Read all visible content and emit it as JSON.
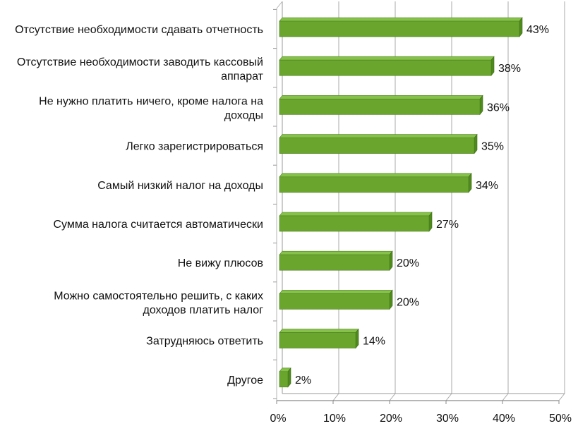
{
  "chart_data": {
    "type": "bar",
    "orientation": "horizontal",
    "style": "3d",
    "bar_color": "#6aa62e",
    "bar_top_color": "#4f8a1f",
    "grid": true,
    "legend": "none",
    "title": "",
    "xlabel": "",
    "ylabel": "",
    "xlim": [
      0,
      50
    ],
    "ticks": [
      "0%",
      "10%",
      "20%",
      "30%",
      "40%",
      "50%"
    ],
    "categories": [
      [
        "Отсутствие необходимости сдавать отчетность"
      ],
      [
        "Отсутствие необходимости заводить кассовый",
        "аппарат"
      ],
      [
        "Не нужно платить ничего, кроме налога на",
        "доходы"
      ],
      [
        "Легко зарегистрироваться"
      ],
      [
        "Самый низкий налог на доходы"
      ],
      [
        "Сумма налога считается автоматически"
      ],
      [
        "Не вижу плюсов"
      ],
      [
        "Можно самостоятельно решить, с каких",
        "доходов платить налог"
      ],
      [
        "Затрудняюсь ответить"
      ],
      [
        "Другое"
      ]
    ],
    "values": [
      43,
      38,
      36,
      35,
      34,
      27,
      20,
      20,
      14,
      2
    ],
    "value_labels": [
      "43%",
      "38%",
      "36%",
      "35%",
      "34%",
      "27%",
      "20%",
      "20%",
      "14%",
      "2%"
    ]
  }
}
